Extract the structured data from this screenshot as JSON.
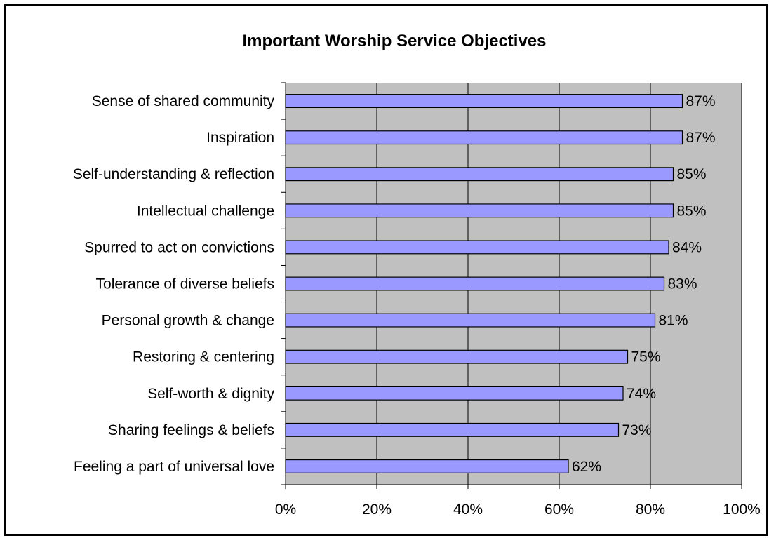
{
  "chart_data": {
    "type": "bar",
    "orientation": "horizontal",
    "title": "Important Worship Service Objectives",
    "xlabel": "",
    "ylabel": "",
    "categories": [
      "Sense of shared community",
      "Inspiration",
      "Self-understanding & reflection",
      "Intellectual challenge",
      "Spurred to act on convictions",
      "Tolerance of diverse beliefs",
      "Personal growth & change",
      "Restoring & centering",
      "Self-worth & dignity",
      "Sharing feelings & beliefs",
      "Feeling a part of universal love"
    ],
    "values": [
      87,
      87,
      85,
      85,
      84,
      83,
      81,
      75,
      74,
      73,
      62
    ],
    "data_labels": [
      "87%",
      "87%",
      "85%",
      "85%",
      "84%",
      "83%",
      "81%",
      "75%",
      "74%",
      "73%",
      "62%"
    ],
    "xlim": [
      0,
      100
    ],
    "x_ticks": [
      0,
      20,
      40,
      60,
      80,
      100
    ],
    "x_tick_labels": [
      "0%",
      "20%",
      "40%",
      "60%",
      "80%",
      "100%"
    ],
    "grid": "vertical",
    "legend": "none",
    "colors": {
      "bar_fill": "#9999FF",
      "bar_stroke": "#000000",
      "plot_background": "#C0C0C0",
      "gridline": "#000000"
    }
  }
}
